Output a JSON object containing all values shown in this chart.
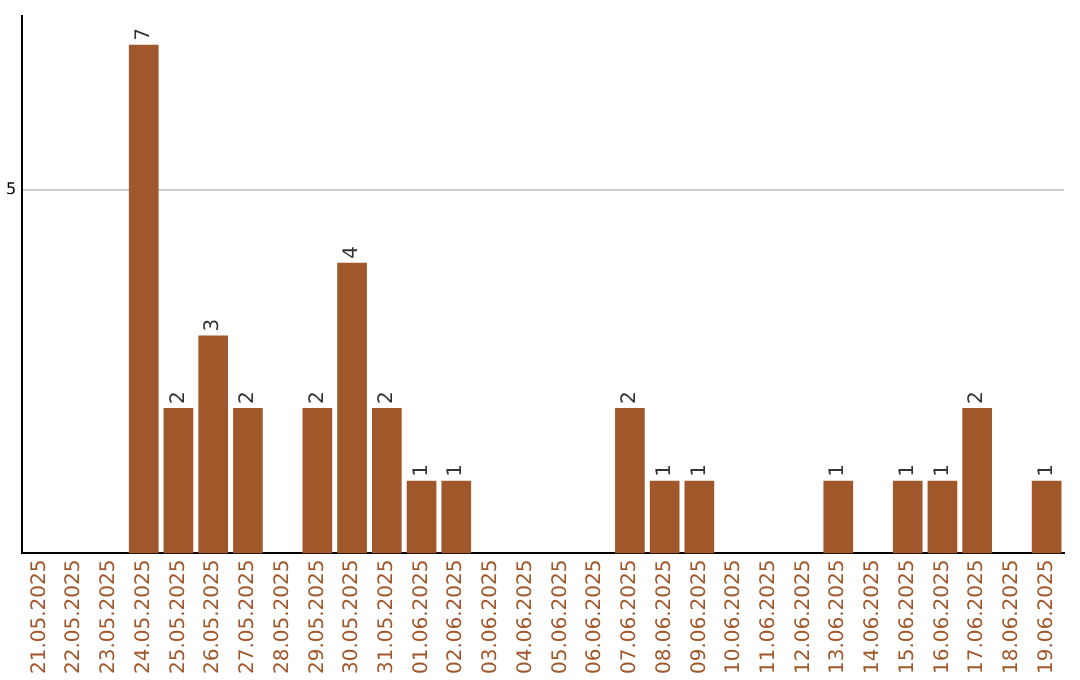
{
  "chart_data": {
    "type": "bar",
    "categories": [
      "21.05.2025",
      "22.05.2025",
      "23.05.2025",
      "24.05.2025",
      "25.05.2025",
      "26.05.2025",
      "27.05.2025",
      "28.05.2025",
      "29.05.2025",
      "30.05.2025",
      "31.05.2025",
      "01.06.2025",
      "02.06.2025",
      "03.06.2025",
      "04.06.2025",
      "05.06.2025",
      "06.06.2025",
      "07.06.2025",
      "08.06.2025",
      "09.06.2025",
      "10.06.2025",
      "11.06.2025",
      "12.06.2025",
      "13.06.2025",
      "14.06.2025",
      "15.06.2025",
      "16.06.2025",
      "17.06.2025",
      "18.06.2025",
      "19.06.2025"
    ],
    "values": [
      null,
      null,
      null,
      7,
      2,
      3,
      2,
      null,
      2,
      4,
      2,
      1,
      1,
      null,
      null,
      null,
      null,
      2,
      1,
      1,
      null,
      null,
      null,
      1,
      null,
      1,
      1,
      2,
      null,
      1
    ],
    "color": "#a0572a",
    "ylim": [
      0,
      7.4
    ],
    "yticks": [
      5
    ],
    "grid": "y",
    "data_labels": true,
    "legend": false
  }
}
